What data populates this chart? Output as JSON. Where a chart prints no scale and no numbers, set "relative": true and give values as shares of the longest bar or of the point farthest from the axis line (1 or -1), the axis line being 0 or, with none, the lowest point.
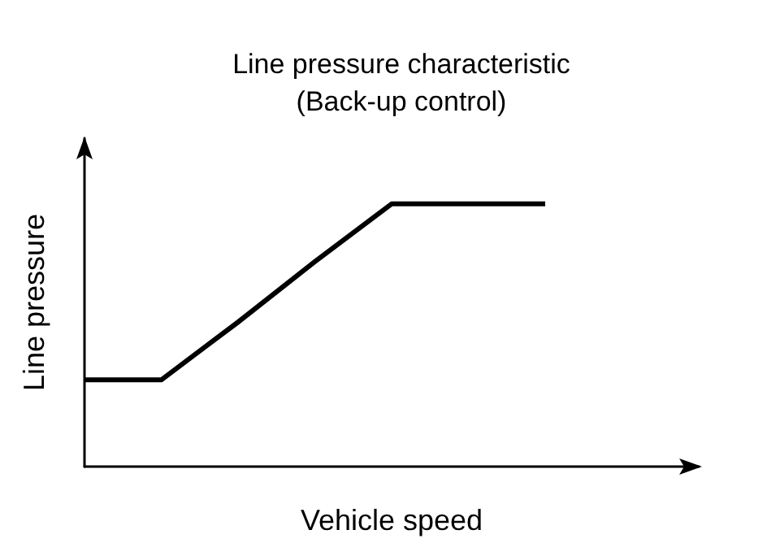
{
  "chart_data": {
    "type": "line",
    "title": "Line pressure characteristic",
    "subtitle": "(Back-up control)",
    "xlabel": "Vehicle speed",
    "ylabel": "Line pressure",
    "relative": true,
    "categories": [
      null,
      null,
      null,
      null,
      null,
      null,
      null
    ],
    "series": [
      {
        "color": "#000000",
        "values": [
          0.33,
          0.33,
          0.55,
          0.78,
          1,
          1,
          1
        ]
      }
    ],
    "grid": false,
    "marker": "none",
    "line_style": "solid"
  }
}
